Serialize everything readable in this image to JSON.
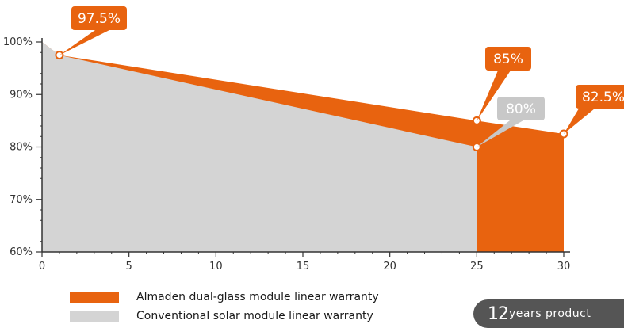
{
  "chart_data": {
    "type": "area",
    "xlim": [
      0,
      30
    ],
    "ylim": [
      60,
      100
    ],
    "x_ticks": [
      "0",
      "5",
      "10",
      "15",
      "20",
      "25",
      "30"
    ],
    "y_ticks": [
      "60%",
      "70%",
      "80%",
      "90%",
      "100%"
    ],
    "series": [
      {
        "name": "Almaden dual-glass module linear warranty",
        "color": "#e8630f",
        "points": [
          [
            0,
            100
          ],
          [
            1,
            97.5
          ],
          [
            25,
            85
          ],
          [
            30,
            82.5
          ]
        ]
      },
      {
        "name": "Conventional solar module linear warranty",
        "color": "#d4d4d4",
        "points": [
          [
            0,
            100
          ],
          [
            1,
            97.5
          ],
          [
            25,
            80
          ]
        ]
      }
    ],
    "annotations": [
      {
        "label": "97.5%",
        "x": 1,
        "y": 97.5,
        "color": "#e8630f"
      },
      {
        "label": "85%",
        "x": 25,
        "y": 85,
        "color": "#e8630f"
      },
      {
        "label": "80%",
        "x": 25,
        "y": 80,
        "color": "#c8c8c8"
      },
      {
        "label": "82.5%",
        "x": 30,
        "y": 82.5,
        "color": "#e8630f"
      }
    ]
  },
  "legend": [
    {
      "label": "Almaden dual-glass module linear warranty",
      "color": "#e8630f"
    },
    {
      "label": "Conventional solar module linear warranty",
      "color": "#d4d4d4"
    }
  ],
  "badge": {
    "number": "12",
    "text": "years product"
  }
}
